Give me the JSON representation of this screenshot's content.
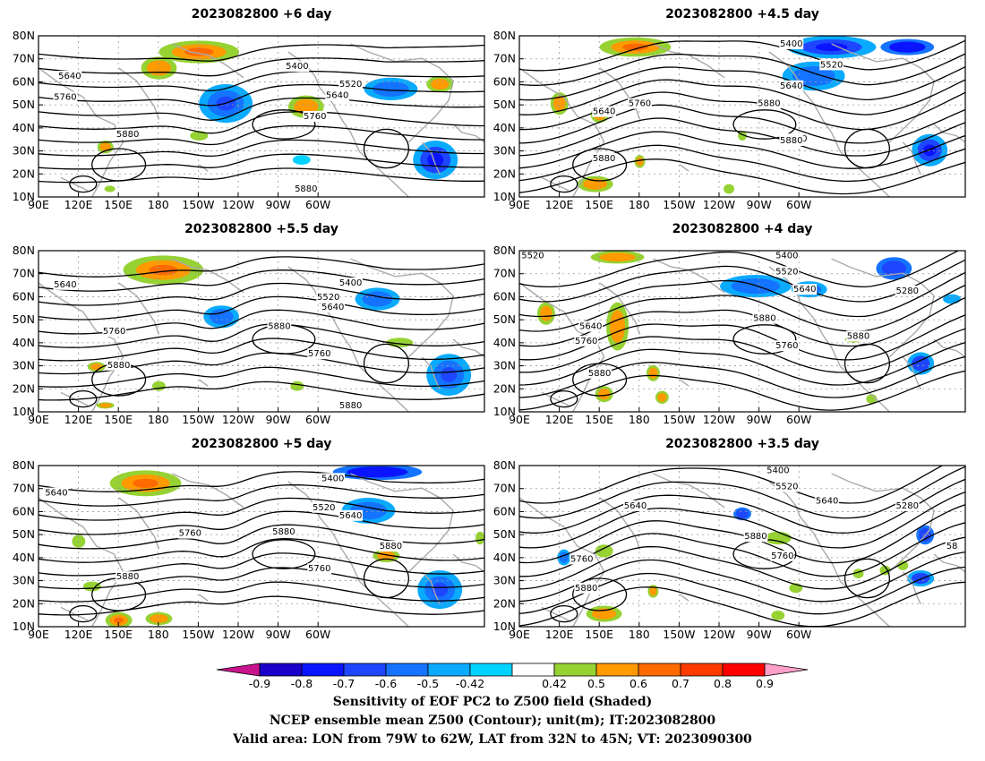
{
  "figure": {
    "panels": [
      {
        "title": "2023082800 +6 day",
        "contour_labels": [
          "5400",
          "5520",
          "5640",
          "5640",
          "5760",
          "5760",
          "5880",
          "5880"
        ]
      },
      {
        "title": "2023082800 +4.5 day",
        "contour_labels": [
          "5400",
          "5520",
          "5640",
          "5640",
          "5760",
          "5880",
          "5760",
          "5880",
          "5880"
        ]
      },
      {
        "title": "2023082800 +5.5 day",
        "contour_labels": [
          "5640",
          "5400",
          "5520",
          "5640",
          "5760",
          "5880",
          "5760",
          "5880",
          "5880"
        ]
      },
      {
        "title": "2023082800 +4 day",
        "contour_labels": [
          "5520",
          "5400",
          "5520",
          "5640",
          "5280",
          "5640",
          "5760",
          "5880",
          "5760",
          "5880",
          "5880"
        ]
      },
      {
        "title": "2023082800 +5 day",
        "contour_labels": [
          "5640",
          "5400",
          "5520",
          "5640",
          "5760",
          "5880",
          "5760",
          "5880",
          "5880"
        ]
      },
      {
        "title": "2023082800 +3.5 day",
        "contour_labels": [
          "5400",
          "5520",
          "5640",
          "5640",
          "5280",
          "5760",
          "5880",
          "5760",
          "5880",
          "58"
        ]
      }
    ],
    "axes": {
      "lon_ticks": [
        "90E",
        "120E",
        "150E",
        "180",
        "150W",
        "120W",
        "90W",
        "60W"
      ],
      "lat_ticks": [
        "80N",
        "70N",
        "60N",
        "50N",
        "40N",
        "30N",
        "20N",
        "10N"
      ]
    },
    "colorbar": {
      "labels": [
        "-0.9",
        "-0.8",
        "-0.7",
        "-0.6",
        "-0.5",
        "-0.42",
        "0.42",
        "0.5",
        "0.6",
        "0.7",
        "0.8",
        "0.9"
      ],
      "colors": [
        "#1a00c8",
        "#0a14ff",
        "#1e46ff",
        "#1473ff",
        "#0aaaff",
        "#00d2ff",
        "#ffffff",
        "#96d232",
        "#ff9a00",
        "#ff6a00",
        "#ff3a00",
        "#ff0000"
      ],
      "low_extend_color": "#c8148c",
      "high_extend_color": "#ffa0c8"
    },
    "contour_color": "#000000",
    "coastline_color": "#aaaaaa",
    "grid_color": "#999999"
  },
  "caption": {
    "line1": "Sensitivity of EOF PC2 to Z500 field (Shaded)",
    "line2": "NCEP ensemble mean Z500 (Contour); unit(m); IT:2023082800",
    "line3": "Valid area: LON from 79W to 62W, LAT from 32N to 45N; VT: 2023090300"
  }
}
